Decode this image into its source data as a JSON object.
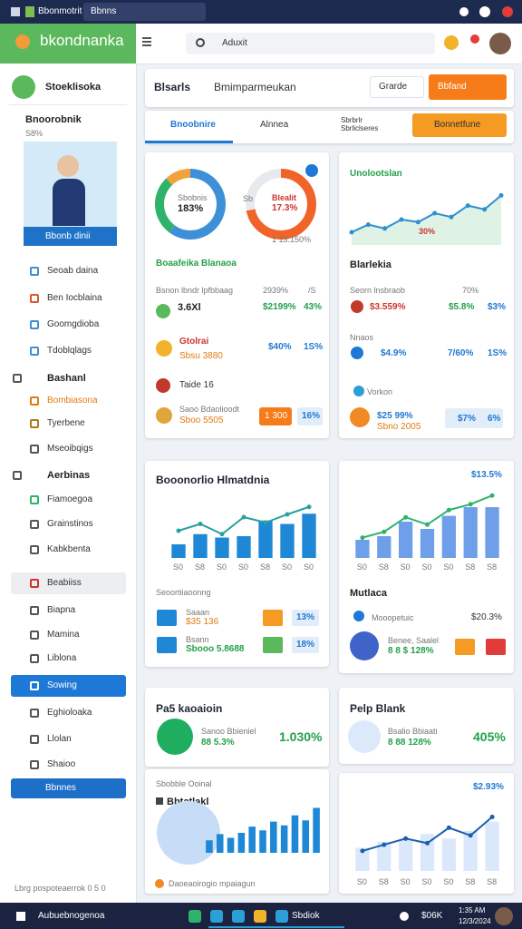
{
  "titlebar": {
    "app": "Bbonmotrit",
    "tab": "Bbnns"
  },
  "brand": "bkondnanka",
  "topbar": {
    "search": "Aduxit"
  },
  "sidebar": {
    "user": "Stoeklisoka",
    "profile": {
      "title": "Bnoorobnik",
      "sub": "S8%",
      "button": "Bbonb dinii"
    },
    "items": [
      "Seoab daina",
      "Ben Iocblaina",
      "Goomgdioba",
      "Tdoblqlags",
      "Bashanl",
      "Bombiasona",
      "Tyerbene",
      "Mseoibqigs",
      "Aerbinas",
      "Fiamoegoa",
      "Grainstinos",
      "Kabkbenta",
      "Beabiiss",
      "Biapna",
      "Mamina",
      "Liblona",
      "Sowing",
      "Eghioloaka",
      "Llolan",
      "Shaioo"
    ],
    "button": "Bbnnes",
    "footer": "Lbrg pospoteaerrok 0 5 0"
  },
  "header": {
    "title": "Blsarls",
    "subtitle": "Bmimparmeukan",
    "select": "Grarde",
    "button": "Bbfand"
  },
  "tabs": {
    "items": [
      "Bnoobnire",
      "Alnnea",
      "Sbrbrlr Sbrliclseres"
    ],
    "button": "Bonnetfune"
  },
  "card1": {
    "donut1": {
      "label": "Sbobnis",
      "value_text": "183%",
      "segments": [
        60,
        28,
        12
      ],
      "colors": [
        "#3d8fd8",
        "#2fb36b",
        "#f2a23a"
      ]
    },
    "donut2": {
      "label": "Blealit",
      "value_text": "17.3%",
      "side": "Sb",
      "footer": "1 13.150%",
      "segments": [
        72,
        28
      ],
      "colors": [
        "#f0642a",
        "#e6e9ee"
      ]
    },
    "title": "Boaafeika Blanaoa",
    "rows": [
      [
        "Bsnon lbndr lpfbbaag",
        "2939%",
        "/S"
      ],
      [
        "3.6Xl",
        "$2199%",
        "43%"
      ],
      [
        "Gtolrai",
        "Sbsu 3880",
        "$40%",
        "1S%"
      ],
      [
        "Taide 16"
      ],
      [
        "Saoo Bdaolioodt",
        "Sboo 5505",
        "1 300",
        "16%"
      ]
    ]
  },
  "card2": {
    "title": "Unolootslan",
    "chart": {
      "line": [
        2,
        3.2,
        2.6,
        4,
        3.6,
        5,
        4.4,
        6.2,
        5.6,
        7.8
      ],
      "color": "#2f8fd0",
      "area_color": "#dff2e6",
      "ylim": [
        0,
        10
      ]
    },
    "note": "30%",
    "subtitle": "Blarlekia",
    "rows": [
      [
        "Seorn lnsbraob",
        "70%"
      ],
      [
        "$3.559%",
        "$5.8%",
        "$3%"
      ],
      [
        "Nnaos"
      ],
      [
        "$4.9%",
        "7/60%",
        "1S%"
      ],
      [
        "Vorkon"
      ],
      [
        "$25 99%",
        "Sbno 2005",
        "$7%",
        "6%"
      ]
    ]
  },
  "card3": {
    "title": "Booonorlio Hlmatdnia",
    "chart": {
      "bars": [
        2,
        3.5,
        3,
        3.2,
        5.5,
        5,
        6.5
      ],
      "line": [
        4,
        5,
        3.5,
        6,
        5.2,
        6.4,
        7.5
      ],
      "bar_color": "#1e88d6",
      "color": "#2aa0a0",
      "categories": [
        "S0",
        "S8",
        "S0",
        "S0",
        "S8",
        "S0",
        "S0"
      ],
      "ylim": [
        0,
        10
      ]
    },
    "subtitle": "Seoortiiaoonng",
    "rows": [
      [
        "Saaan",
        "$35 136",
        "13%"
      ],
      [
        "Bsann",
        "Sbooo 5.8688",
        "18%"
      ]
    ]
  },
  "card4": {
    "value": "$13.5%",
    "chart": {
      "bars": [
        2.5,
        3,
        5,
        4,
        5.8,
        7,
        7
      ],
      "line": [
        2.8,
        3.6,
        5.6,
        4.6,
        6.6,
        7.4,
        8.6
      ],
      "bar_color": "#6e9fe8",
      "color": "#2fb36b",
      "categories": [
        "S0",
        "S8",
        "S0",
        "S0",
        "S0",
        "S8",
        "S8"
      ],
      "ylim": [
        0,
        10
      ]
    },
    "subtitle": "Mutlaca",
    "rows": [
      [
        "Mooopetuic",
        "$20.3%"
      ],
      [
        "Benee, Saalel",
        "8 8 $ 128%"
      ]
    ]
  },
  "card5": {
    "title": "Pa5 kaoaioin",
    "label": "Sanoo Bbieniel",
    "sub": "88 5.3%",
    "value": "1.030%"
  },
  "card6": {
    "title": "Pelp Blank",
    "label": "Bsalio Bbiaati",
    "sub": "8 88 128%",
    "value": "405%"
  },
  "card7": {
    "title": "Sbobble Ooinal",
    "label": "Bbtatlakl",
    "chart": {
      "bars": [
        2,
        3,
        2.4,
        3.2,
        4.2,
        3.6,
        5,
        4.4,
        6,
        5.2,
        7.2
      ],
      "bar_color": "#1e88d6",
      "ylim": [
        0,
        8
      ]
    },
    "footer": "Daoeaoirogio mpaiagun"
  },
  "card8": {
    "value": "$2.93%",
    "chart": {
      "bars": [
        3,
        3.8,
        4,
        4.8,
        4.2,
        5.2,
        6.4
      ],
      "line": [
        2.6,
        3.4,
        4.2,
        3.6,
        5.6,
        4.6,
        7
      ],
      "bar_color": "#dbe8fb",
      "color": "#1b5fae",
      "categories": [
        "S0",
        "S8",
        "S0",
        "S0",
        "S0",
        "S8",
        "S8"
      ],
      "ylim": [
        0,
        10
      ]
    }
  },
  "taskbar": {
    "start": "Aubuebnogenoa",
    "app": "Sbdiok",
    "weather": "$06K",
    "time": "1:35 AM",
    "date": "12/3/2024"
  }
}
